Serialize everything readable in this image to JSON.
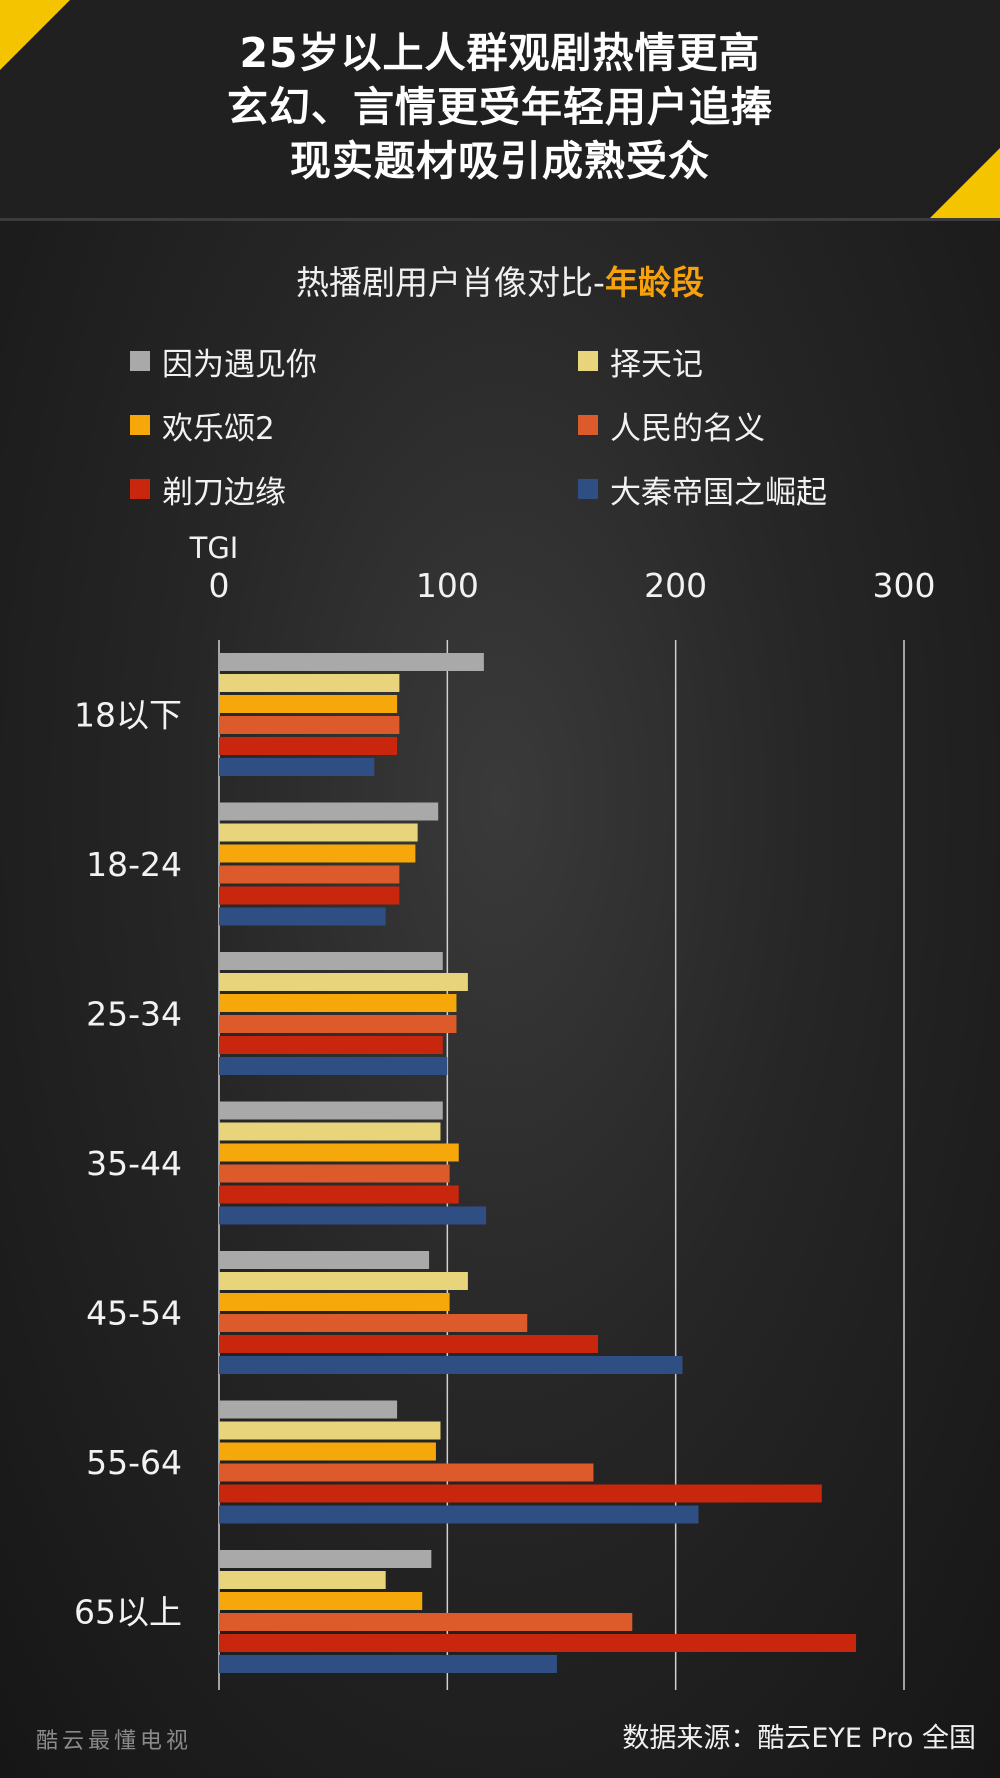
{
  "header": {
    "lines": [
      "25岁以上人群观剧热情更高",
      "玄幻、言情更受年轻用户追捧",
      "现实题材吸引成熟受众"
    ]
  },
  "chart_title": {
    "prefix": "热播剧用户肖像对比-",
    "highlight": "年龄段"
  },
  "footer": {
    "brand": "酷云最懂电视",
    "source": "数据来源：酷云EYE Pro 全国"
  },
  "colors": {
    "accent": "#f5c400",
    "highlight": "#f7a20c",
    "grid": "#d0d0d0"
  },
  "chart_data": {
    "type": "bar",
    "orientation": "horizontal",
    "axis_label": "TGI",
    "xlim": [
      0,
      300
    ],
    "xticks": [
      "0",
      "100",
      "200",
      "300"
    ],
    "grid": true,
    "categories": [
      "18以下",
      "18-24",
      "25-34",
      "35-44",
      "45-54",
      "55-64",
      "65以上"
    ],
    "series": [
      {
        "name": "因为遇见你",
        "color": "#a9a9a9",
        "values": [
          116,
          96,
          98,
          98,
          92,
          78,
          93
        ]
      },
      {
        "name": "择天记",
        "color": "#e8d57b",
        "values": [
          79,
          87,
          109,
          97,
          109,
          97,
          73
        ]
      },
      {
        "name": "欢乐颂2",
        "color": "#f6a80b",
        "values": [
          78,
          86,
          104,
          105,
          101,
          95,
          89
        ]
      },
      {
        "name": "人民的名义",
        "color": "#dd5a2a",
        "values": [
          79,
          79,
          104,
          101,
          135,
          164,
          181
        ]
      },
      {
        "name": "剃刀边缘",
        "color": "#c9260e",
        "values": [
          78,
          79,
          98,
          105,
          166,
          264,
          279
        ]
      },
      {
        "name": "大秦帝国之崛起",
        "color": "#2e4e84",
        "values": [
          68,
          73,
          100,
          117,
          203,
          210,
          148
        ]
      }
    ]
  }
}
